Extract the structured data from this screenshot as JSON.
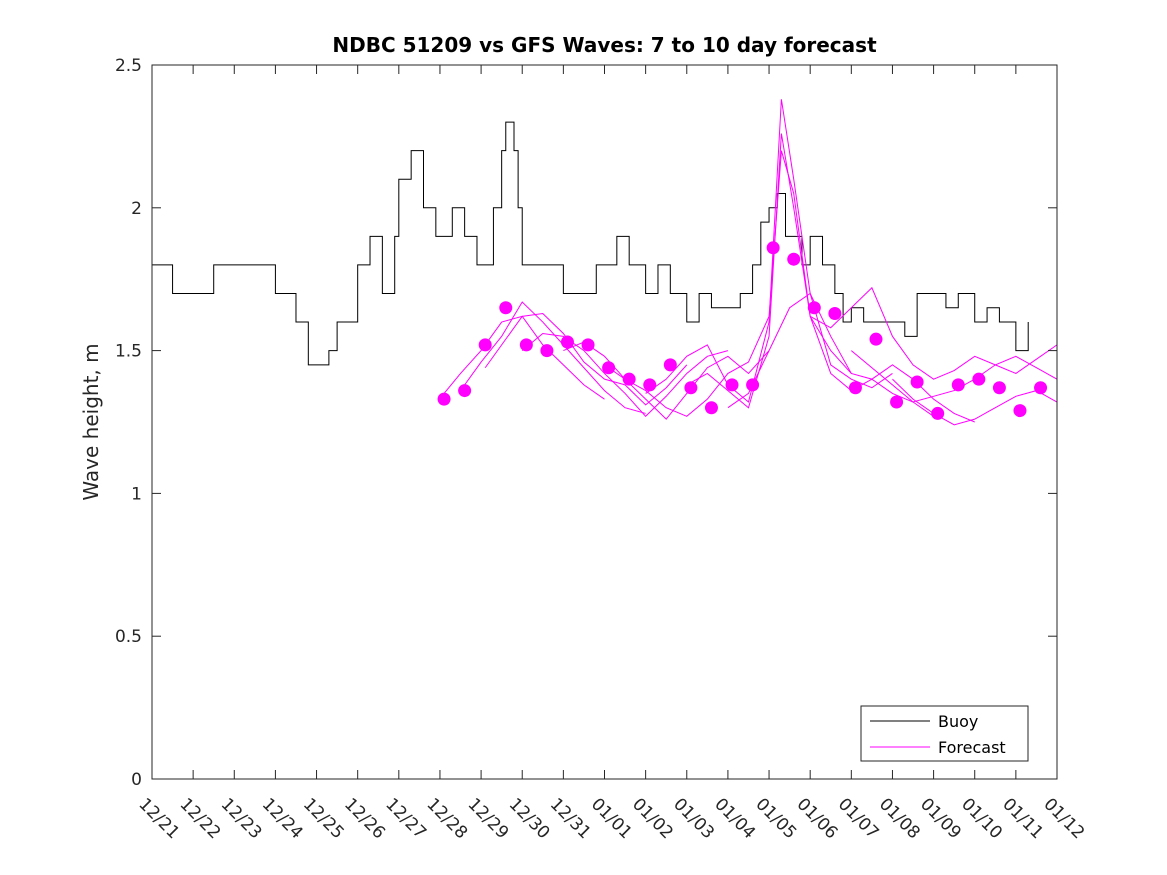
{
  "chart_data": {
    "type": "line",
    "title": "NDBC 51209 vs GFS Waves: 7 to 10 day forecast",
    "xlabel": "",
    "ylabel": "Wave height, m",
    "xlim": [
      0,
      22
    ],
    "ylim": [
      0,
      2.5
    ],
    "yticks": [
      0,
      0.5,
      1,
      1.5,
      2,
      2.5
    ],
    "ytick_labels": [
      "0",
      "0.5",
      "1",
      "1.5",
      "2",
      "2.5"
    ],
    "xtick_labels": [
      "12/21",
      "12/22",
      "12/23",
      "12/24",
      "12/25",
      "12/26",
      "12/27",
      "12/28",
      "12/29",
      "12/30",
      "12/31",
      "01/01",
      "01/02",
      "01/03",
      "01/04",
      "01/05",
      "01/06",
      "01/07",
      "01/08",
      "01/09",
      "01/10",
      "01/11",
      "01/12"
    ],
    "legend": {
      "location": "bottom-right",
      "entries": [
        {
          "name": "Buoy",
          "color": "#000000"
        },
        {
          "name": "Forecast",
          "color": "#ff00ff"
        }
      ]
    },
    "series": [
      {
        "name": "Buoy",
        "color": "#000000",
        "x": [
          0,
          0.5,
          1,
          1.5,
          2,
          2.5,
          3,
          3.5,
          3.8,
          4,
          4.3,
          4.5,
          5,
          5.3,
          5.6,
          5.9,
          6,
          6.3,
          6.6,
          6.9,
          7,
          7.3,
          7.6,
          7.9,
          8,
          8.3,
          8.5,
          8.6,
          8.8,
          8.9,
          9,
          9.3,
          9.6,
          10,
          10.4,
          10.8,
          11,
          11.3,
          11.6,
          12,
          12.3,
          12.6,
          13,
          13.3,
          13.6,
          14,
          14.3,
          14.6,
          14.8,
          15,
          15.2,
          15.4,
          15.6,
          15.8,
          16,
          16.3,
          16.6,
          16.8,
          17,
          17.3,
          17.6,
          18,
          18.3,
          18.6,
          19,
          19.3,
          19.6,
          20,
          20.3,
          20.6,
          21,
          21.3
        ],
        "y": [
          1.8,
          1.7,
          1.7,
          1.8,
          1.8,
          1.8,
          1.7,
          1.6,
          1.45,
          1.45,
          1.5,
          1.6,
          1.8,
          1.9,
          1.7,
          1.9,
          2.1,
          2.2,
          2.0,
          1.9,
          1.9,
          2.0,
          1.9,
          1.8,
          1.8,
          2.0,
          2.2,
          2.3,
          2.2,
          2.0,
          1.8,
          1.8,
          1.8,
          1.7,
          1.7,
          1.8,
          1.8,
          1.9,
          1.8,
          1.7,
          1.8,
          1.7,
          1.6,
          1.7,
          1.65,
          1.65,
          1.7,
          1.8,
          1.95,
          2.0,
          2.05,
          1.9,
          1.9,
          1.8,
          1.9,
          1.8,
          1.7,
          1.6,
          1.65,
          1.6,
          1.6,
          1.6,
          1.55,
          1.7,
          1.7,
          1.65,
          1.7,
          1.6,
          1.65,
          1.6,
          1.5,
          1.6
        ]
      },
      {
        "name": "Forecast",
        "color": "#ff00ff",
        "x": [
          7.1,
          7.5,
          8,
          8.5,
          9,
          9.5,
          10,
          10.5,
          11
        ],
        "y": [
          1.35,
          1.42,
          1.5,
          1.6,
          1.62,
          1.52,
          1.45,
          1.38,
          1.33
        ]
      },
      {
        "name": "Forecast",
        "color": "#ff00ff",
        "x": [
          7.6,
          8,
          8.5,
          9,
          9.5,
          10,
          10.5,
          11,
          11.5,
          12
        ],
        "y": [
          1.38,
          1.46,
          1.55,
          1.67,
          1.6,
          1.52,
          1.44,
          1.36,
          1.3,
          1.28
        ]
      },
      {
        "name": "Forecast",
        "color": "#ff00ff",
        "x": [
          8.1,
          8.5,
          9,
          9.5,
          10,
          10.5,
          11,
          11.5,
          12,
          12.5,
          13
        ],
        "y": [
          1.44,
          1.52,
          1.62,
          1.63,
          1.56,
          1.46,
          1.4,
          1.38,
          1.31,
          1.37,
          1.45
        ]
      },
      {
        "name": "Forecast",
        "color": "#ff00ff",
        "x": [
          9,
          9.5,
          10,
          10.5,
          11,
          11.5,
          12,
          12.5,
          13,
          13.5,
          14
        ],
        "y": [
          1.5,
          1.56,
          1.55,
          1.5,
          1.42,
          1.35,
          1.27,
          1.34,
          1.42,
          1.48,
          1.5
        ]
      },
      {
        "name": "Forecast",
        "color": "#ff00ff",
        "x": [
          10,
          10.5,
          11,
          11.5,
          12,
          12.5,
          13,
          13.5,
          14,
          14.5,
          15
        ],
        "y": [
          1.5,
          1.53,
          1.48,
          1.4,
          1.33,
          1.26,
          1.35,
          1.44,
          1.48,
          1.42,
          1.5
        ]
      },
      {
        "name": "Forecast",
        "color": "#ff00ff",
        "x": [
          11,
          11.5,
          12,
          12.5,
          13,
          13.5,
          14,
          14.5,
          15,
          15.3,
          15.6,
          16,
          16.5,
          17
        ],
        "y": [
          1.45,
          1.4,
          1.36,
          1.3,
          1.27,
          1.33,
          1.42,
          1.46,
          1.62,
          2.2,
          2.05,
          1.62,
          1.5,
          1.42
        ]
      },
      {
        "name": "Forecast",
        "color": "#ff00ff",
        "x": [
          12,
          12.5,
          13,
          13.5,
          14,
          14.5,
          15,
          15.3,
          15.6,
          16,
          16.5,
          17,
          17.5,
          18
        ],
        "y": [
          1.35,
          1.4,
          1.48,
          1.52,
          1.38,
          1.32,
          1.6,
          2.38,
          2.1,
          1.7,
          1.45,
          1.4,
          1.37,
          1.42
        ]
      },
      {
        "name": "Forecast",
        "color": "#ff00ff",
        "x": [
          13,
          13.5,
          14,
          14.5,
          15,
          15.3,
          15.6,
          16,
          16.5,
          17,
          17.5,
          18,
          18.5,
          19
        ],
        "y": [
          1.38,
          1.42,
          1.36,
          1.3,
          1.55,
          2.26,
          2.0,
          1.62,
          1.42,
          1.36,
          1.4,
          1.35,
          1.32,
          1.27
        ]
      },
      {
        "name": "Forecast",
        "color": "#ff00ff",
        "x": [
          14,
          14.5,
          15,
          15.5,
          16,
          16.5,
          17,
          17.5,
          18,
          18.5,
          19,
          19.5,
          20
        ],
        "y": [
          1.3,
          1.35,
          1.5,
          1.65,
          1.7,
          1.55,
          1.42,
          1.4,
          1.45,
          1.4,
          1.33,
          1.28,
          1.25
        ]
      },
      {
        "name": "Forecast",
        "color": "#ff00ff",
        "x": [
          16,
          16.5,
          17,
          17.5,
          18,
          18.5,
          19,
          19.5,
          20,
          20.5,
          21,
          21.5,
          22
        ],
        "y": [
          1.62,
          1.58,
          1.65,
          1.72,
          1.55,
          1.45,
          1.4,
          1.43,
          1.48,
          1.45,
          1.42,
          1.47,
          1.52
        ]
      },
      {
        "name": "Forecast",
        "color": "#ff00ff",
        "x": [
          17,
          17.5,
          18,
          18.5,
          19,
          19.5,
          20,
          20.5,
          21,
          21.5,
          22
        ],
        "y": [
          1.5,
          1.44,
          1.38,
          1.32,
          1.34,
          1.36,
          1.4,
          1.45,
          1.48,
          1.44,
          1.4
        ]
      },
      {
        "name": "Forecast",
        "color": "#ff00ff",
        "x": [
          18,
          18.5,
          19,
          19.5,
          20,
          20.5,
          21,
          21.5,
          22
        ],
        "y": [
          1.4,
          1.33,
          1.28,
          1.24,
          1.26,
          1.3,
          1.34,
          1.36,
          1.32
        ]
      }
    ],
    "markers": {
      "name": "Forecast points",
      "color": "#ff00ff",
      "x": [
        7.1,
        7.6,
        8.1,
        8.6,
        9.1,
        9.6,
        10.1,
        10.6,
        11.1,
        11.6,
        12.1,
        12.6,
        13.1,
        13.6,
        14.1,
        14.6,
        15.1,
        15.6,
        16.1,
        16.6,
        17.1,
        17.6,
        18.1,
        18.6,
        19.1,
        19.6,
        20.1,
        20.6,
        21.1,
        21.6
      ],
      "y": [
        1.33,
        1.36,
        1.52,
        1.65,
        1.52,
        1.5,
        1.53,
        1.52,
        1.44,
        1.4,
        1.38,
        1.45,
        1.37,
        1.3,
        1.38,
        1.38,
        1.86,
        1.82,
        1.65,
        1.63,
        1.37,
        1.54,
        1.32,
        1.39,
        1.28,
        1.38,
        1.4,
        1.37,
        1.29,
        1.37
      ]
    }
  }
}
